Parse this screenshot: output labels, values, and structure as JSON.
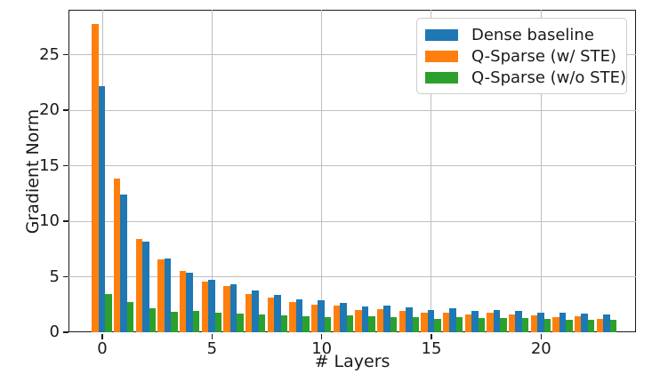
{
  "figure": {
    "background": "#ffffff",
    "spine_color": "#1a1a1a",
    "grid_color": "#bfbfbf"
  },
  "chart_data": {
    "type": "bar",
    "title": "",
    "xlabel": "# Layers",
    "ylabel": "Gradient Norm",
    "categories": [
      0,
      1,
      2,
      3,
      4,
      5,
      6,
      7,
      8,
      9,
      10,
      11,
      12,
      13,
      14,
      15,
      16,
      17,
      18,
      19,
      20,
      21,
      22,
      23
    ],
    "series": [
      {
        "name": "Dense baseline",
        "color": "#1f77b4",
        "values": [
          22.1,
          12.4,
          8.15,
          6.6,
          5.3,
          4.7,
          4.25,
          3.7,
          3.35,
          2.9,
          2.85,
          2.6,
          2.3,
          2.35,
          2.2,
          1.95,
          2.1,
          1.9,
          1.95,
          1.85,
          1.75,
          1.75,
          1.65,
          1.55
        ]
      },
      {
        "name": "Q-Sparse (w/ STE)",
        "color": "#ff7f0e",
        "values": [
          27.7,
          13.8,
          8.4,
          6.5,
          5.45,
          4.55,
          4.1,
          3.4,
          3.1,
          2.7,
          2.45,
          2.35,
          2.0,
          2.05,
          1.9,
          1.7,
          1.75,
          1.6,
          1.7,
          1.6,
          1.5,
          1.35,
          1.4,
          1.2
        ]
      },
      {
        "name": "Q-Sparse (w/o STE)",
        "color": "#2ca02c",
        "values": [
          3.4,
          2.7,
          2.1,
          1.8,
          1.85,
          1.75,
          1.65,
          1.6,
          1.45,
          1.4,
          1.35,
          1.45,
          1.4,
          1.35,
          1.3,
          1.2,
          1.3,
          1.25,
          1.25,
          1.25,
          1.2,
          1.1,
          1.05,
          1.1
        ]
      }
    ],
    "group_draw_order": [
      1,
      0,
      2
    ],
    "ylim": [
      0,
      29.04
    ],
    "y_ticks": [
      0,
      5,
      10,
      15,
      20,
      25
    ],
    "y_tick_labels": [
      "0",
      "5",
      "10",
      "15",
      "20",
      "25"
    ],
    "x_ticks": [
      0,
      5,
      10,
      15,
      20
    ],
    "x_tick_labels": [
      "0",
      "5",
      "10",
      "15",
      "20"
    ],
    "grid": true,
    "legend_position": "upper right"
  }
}
